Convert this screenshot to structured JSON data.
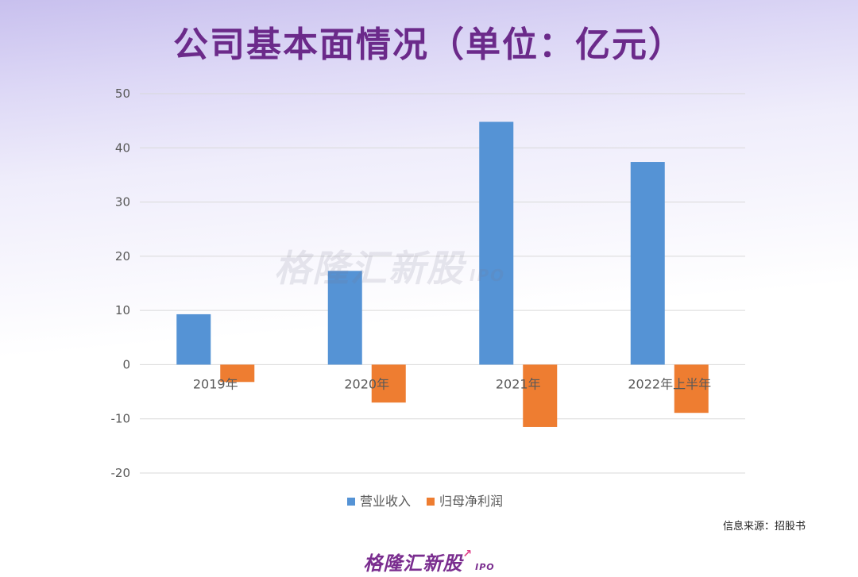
{
  "title": "公司基本面情况（单位：亿元）",
  "source": "信息来源：招股书",
  "watermark": {
    "main": "格隆汇新股",
    "sub": "IPO"
  },
  "footer_logo": {
    "main": "格隆汇新股",
    "sub": "IPO",
    "arrow": "↗"
  },
  "colors": {
    "revenue": "#5593d5",
    "profit": "#ee7d31",
    "grid": "#d9d9d9",
    "title": "#6b2a8a"
  },
  "chart_data": {
    "type": "bar",
    "categories": [
      "2019年",
      "2020年",
      "2021年",
      "2022年上半年"
    ],
    "series": [
      {
        "name": "营业收入",
        "values": [
          9.3,
          17.3,
          44.8,
          37.4
        ]
      },
      {
        "name": "归母净利润",
        "values": [
          -3.2,
          -7.0,
          -11.5,
          -8.9
        ]
      }
    ],
    "ylim": [
      -20,
      50
    ],
    "yticks": [
      "-20",
      "-10",
      "0",
      "10",
      "20",
      "30",
      "40",
      "50"
    ],
    "grid": true,
    "legend": "bottom"
  }
}
